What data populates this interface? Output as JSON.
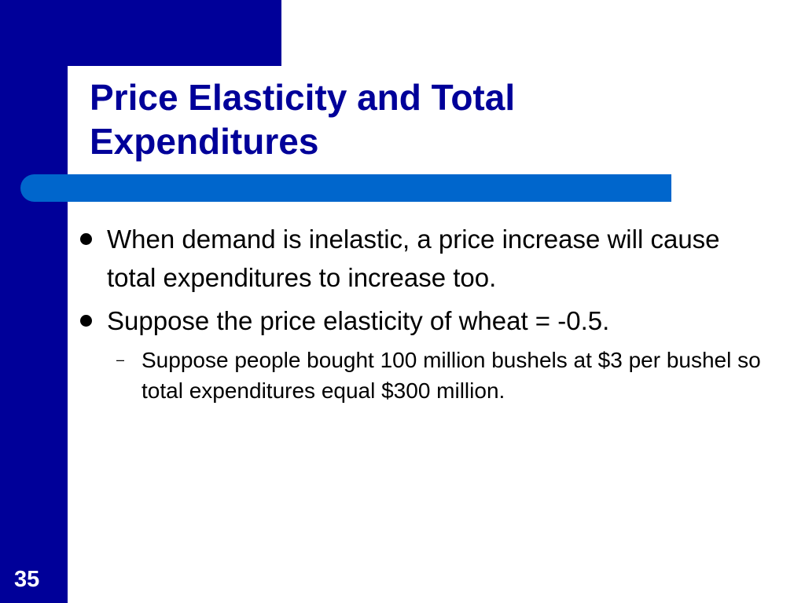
{
  "slide": {
    "title": "Price Elasticity and Total Expenditures",
    "bullets": [
      {
        "text": "When demand is inelastic, a price increase will cause total expenditures to increase too."
      },
      {
        "text": "Suppose the price elasticity of wheat = -0.5.",
        "sub": [
          {
            "marker": "–",
            "text": "Suppose people bought 100 million bushels at $3 per bushel so total expenditures equal $300 million."
          }
        ]
      }
    ],
    "number": "35"
  },
  "colors": {
    "navy": "#000099",
    "accent_blue": "#0066cc",
    "background": "#ffffff"
  }
}
